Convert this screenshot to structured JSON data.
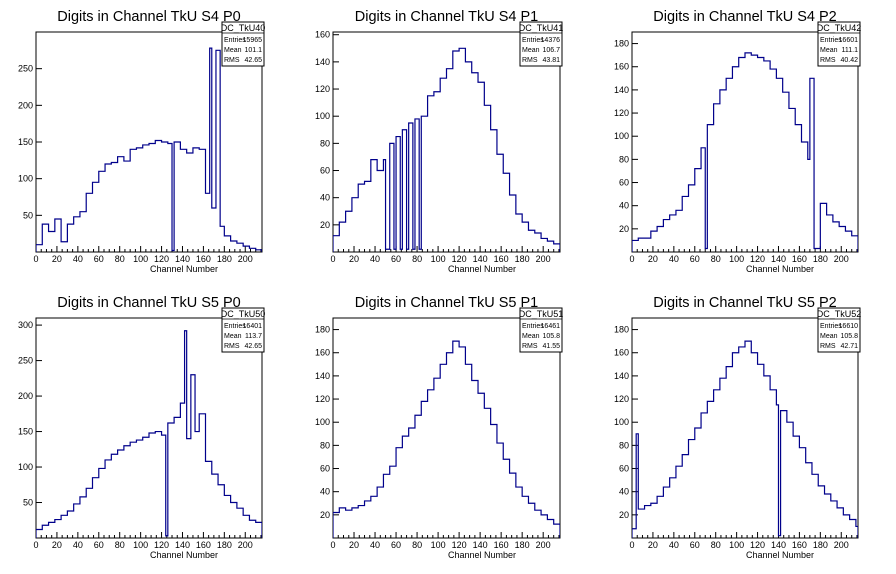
{
  "chart_data": [
    {
      "type": "histogram",
      "title": "Digits in Channel TkU S4 P0",
      "xlabel": "Channel Number",
      "stats": {
        "name": "DC_TkU40",
        "entries": "15965",
        "mean": "101.1",
        "rms": "42.65"
      },
      "xlim": [
        0,
        216
      ],
      "ylim": [
        0,
        300
      ],
      "xticks": [
        0,
        20,
        40,
        60,
        80,
        100,
        120,
        140,
        160,
        180,
        200
      ],
      "yticks": [
        50,
        100,
        150,
        200,
        250
      ],
      "color": "#00008b",
      "x": [
        0,
        6,
        12,
        18,
        24,
        30,
        36,
        42,
        48,
        54,
        60,
        66,
        72,
        78,
        84,
        90,
        96,
        102,
        108,
        114,
        120,
        126,
        130,
        132,
        138,
        144,
        150,
        156,
        162,
        166,
        168,
        172,
        176,
        180,
        186,
        192,
        198,
        204,
        210
      ],
      "y": [
        10,
        38,
        28,
        45,
        14,
        38,
        48,
        55,
        80,
        95,
        110,
        120,
        122,
        130,
        124,
        140,
        142,
        146,
        148,
        152,
        150,
        148,
        2,
        150,
        140,
        135,
        142,
        140,
        80,
        278,
        60,
        275,
        35,
        22,
        15,
        12,
        8,
        5,
        3
      ]
    },
    {
      "type": "histogram",
      "title": "Digits in Channel TkU S4 P1",
      "xlabel": "Channel Number",
      "stats": {
        "name": "DC_TkU41",
        "entries": "14376",
        "mean": "106.7",
        "rms": "43.81"
      },
      "xlim": [
        0,
        216
      ],
      "ylim": [
        0,
        162
      ],
      "xticks": [
        0,
        20,
        40,
        60,
        80,
        100,
        120,
        140,
        160,
        180,
        200
      ],
      "yticks": [
        20,
        40,
        60,
        80,
        100,
        120,
        140,
        160
      ],
      "color": "#00008b",
      "x": [
        0,
        6,
        12,
        18,
        24,
        30,
        36,
        42,
        48,
        50,
        54,
        58,
        60,
        64,
        66,
        70,
        72,
        76,
        78,
        82,
        84,
        90,
        96,
        102,
        108,
        114,
        120,
        126,
        132,
        138,
        144,
        150,
        156,
        162,
        168,
        174,
        180,
        186,
        192,
        198,
        204,
        210
      ],
      "y": [
        12,
        22,
        30,
        40,
        50,
        52,
        68,
        60,
        68,
        2,
        80,
        2,
        85,
        2,
        90,
        2,
        95,
        2,
        98,
        2,
        100,
        115,
        118,
        128,
        135,
        148,
        150,
        140,
        132,
        125,
        108,
        90,
        72,
        58,
        42,
        28,
        22,
        16,
        14,
        10,
        8,
        6
      ]
    },
    {
      "type": "histogram",
      "title": "Digits in Channel TkU S4 P2",
      "xlabel": "Channel Number",
      "stats": {
        "name": "DC_TkU42",
        "entries": "16601",
        "mean": "111.1",
        "rms": "40.42"
      },
      "xlim": [
        0,
        216
      ],
      "ylim": [
        0,
        190
      ],
      "xticks": [
        0,
        20,
        40,
        60,
        80,
        100,
        120,
        140,
        160,
        180,
        200
      ],
      "yticks": [
        20,
        40,
        60,
        80,
        100,
        120,
        140,
        160,
        180
      ],
      "color": "#00008b",
      "x": [
        0,
        6,
        12,
        18,
        24,
        30,
        36,
        42,
        48,
        54,
        60,
        66,
        70,
        72,
        78,
        84,
        90,
        96,
        102,
        108,
        114,
        120,
        126,
        132,
        138,
        144,
        150,
        156,
        162,
        168,
        170,
        174,
        180,
        186,
        192,
        198,
        204,
        210
      ],
      "y": [
        10,
        12,
        12,
        18,
        22,
        28,
        32,
        36,
        48,
        58,
        72,
        90,
        3,
        110,
        128,
        140,
        150,
        160,
        168,
        172,
        170,
        168,
        165,
        158,
        150,
        138,
        124,
        110,
        95,
        80,
        150,
        3,
        42,
        32,
        26,
        22,
        18,
        14
      ]
    },
    {
      "type": "histogram",
      "title": "Digits in Channel TkU S5 P0",
      "xlabel": "Channel Number",
      "stats": {
        "name": "DC_TkU50",
        "entries": "16401",
        "mean": "113.7",
        "rms": "42.65"
      },
      "xlim": [
        0,
        216
      ],
      "ylim": [
        0,
        310
      ],
      "xticks": [
        0,
        20,
        40,
        60,
        80,
        100,
        120,
        140,
        160,
        180,
        200
      ],
      "yticks": [
        50,
        100,
        150,
        200,
        250,
        300
      ],
      "color": "#00008b",
      "x": [
        0,
        6,
        12,
        18,
        24,
        30,
        36,
        42,
        48,
        54,
        60,
        66,
        72,
        78,
        84,
        90,
        96,
        102,
        108,
        114,
        120,
        124,
        126,
        132,
        138,
        142,
        144,
        148,
        152,
        156,
        162,
        168,
        174,
        180,
        186,
        192,
        198,
        204,
        210
      ],
      "y": [
        12,
        18,
        22,
        26,
        32,
        38,
        48,
        58,
        70,
        85,
        98,
        110,
        118,
        124,
        130,
        135,
        138,
        142,
        148,
        150,
        145,
        3,
        162,
        170,
        190,
        292,
        140,
        230,
        150,
        175,
        108,
        90,
        75,
        60,
        50,
        42,
        32,
        25,
        22
      ]
    },
    {
      "type": "histogram",
      "title": "Digits in Channel TkU S5 P1",
      "xlabel": "Channel Number",
      "stats": {
        "name": "DC_TkU51",
        "entries": "16461",
        "mean": "105.8",
        "rms": "41.55"
      },
      "xlim": [
        0,
        216
      ],
      "ylim": [
        0,
        190
      ],
      "xticks": [
        0,
        20,
        40,
        60,
        80,
        100,
        120,
        140,
        160,
        180,
        200
      ],
      "yticks": [
        20,
        40,
        60,
        80,
        100,
        120,
        140,
        160,
        180
      ],
      "color": "#00008b",
      "x": [
        0,
        6,
        12,
        18,
        24,
        30,
        36,
        42,
        48,
        54,
        60,
        66,
        72,
        78,
        84,
        90,
        96,
        102,
        108,
        114,
        120,
        126,
        132,
        138,
        144,
        150,
        156,
        162,
        168,
        174,
        180,
        186,
        192,
        198,
        204,
        210
      ],
      "y": [
        22,
        26,
        24,
        26,
        28,
        32,
        36,
        44,
        55,
        62,
        78,
        88,
        95,
        106,
        118,
        128,
        138,
        150,
        160,
        170,
        165,
        150,
        136,
        125,
        112,
        98,
        82,
        68,
        56,
        44,
        36,
        30,
        24,
        20,
        16,
        12
      ]
    },
    {
      "type": "histogram",
      "title": "Digits in Channel TkU S5 P2",
      "xlabel": "Channel Number",
      "stats": {
        "name": "DC_TkU52",
        "entries": "16610",
        "mean": "105.8",
        "rms": "42.71"
      },
      "xlim": [
        0,
        216
      ],
      "ylim": [
        0,
        190
      ],
      "xticks": [
        0,
        20,
        40,
        60,
        80,
        100,
        120,
        140,
        160,
        180,
        200
      ],
      "yticks": [
        20,
        40,
        60,
        80,
        100,
        120,
        140,
        160,
        180
      ],
      "color": "#00008b",
      "x": [
        0,
        4,
        6,
        12,
        18,
        24,
        30,
        36,
        42,
        48,
        54,
        60,
        66,
        72,
        78,
        84,
        90,
        96,
        102,
        108,
        114,
        120,
        126,
        132,
        138,
        140,
        142,
        148,
        154,
        160,
        166,
        172,
        178,
        184,
        190,
        196,
        202,
        208,
        214
      ],
      "y": [
        8,
        90,
        25,
        28,
        30,
        36,
        44,
        52,
        62,
        72,
        85,
        95,
        108,
        118,
        128,
        138,
        148,
        160,
        165,
        170,
        160,
        150,
        140,
        128,
        115,
        2,
        110,
        100,
        88,
        78,
        65,
        55,
        45,
        38,
        32,
        26,
        20,
        16,
        10
      ]
    }
  ],
  "labels": {
    "entries": "Entries",
    "mean": "Mean",
    "rms": "RMS"
  }
}
